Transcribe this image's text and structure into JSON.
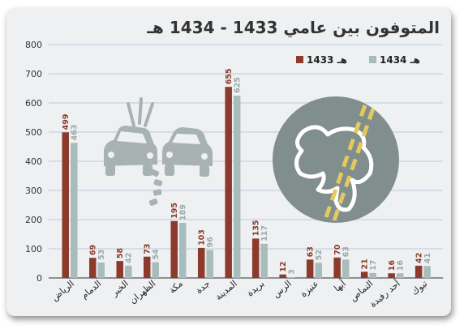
{
  "title": "المتوفون بين عامي 1433 - 1434 هـ",
  "colors": {
    "series_1433": "#8b3a2b",
    "series_1434": "#a9bcbc",
    "grid": "#b8cde0",
    "decor_gray": "#a8b2b2",
    "decor_circle": "#818e8e",
    "decor_yellow": "#e5c95e"
  },
  "decorations": {
    "left_icon": "car-crash-icon",
    "right_icon": "chalk-outline-body-icon"
  },
  "chart_data": {
    "type": "bar",
    "title": "المتوفون بين عامي 1433 - 1434 هـ",
    "xlabel": "",
    "ylabel": "",
    "ylim": [
      0,
      800
    ],
    "yticks": [
      0,
      100,
      200,
      300,
      400,
      500,
      600,
      700,
      800
    ],
    "grid": true,
    "legend_position": "top-right",
    "categories": [
      "الرياض",
      "الدمام",
      "الخبر",
      "الظهران",
      "مكة",
      "جدة",
      "المدينة",
      "بريدة",
      "الرس",
      "عنيزة",
      "أبها",
      "النماص",
      "أحد رفيدة",
      "تبوك"
    ],
    "series": [
      {
        "name": "1433 هـ",
        "color": "#8b3a2b",
        "values": [
          499,
          69,
          58,
          73,
          195,
          103,
          655,
          135,
          12,
          63,
          70,
          21,
          16,
          42
        ]
      },
      {
        "name": "1434 هـ",
        "color": "#a9bcbc",
        "values": [
          463,
          53,
          42,
          54,
          189,
          96,
          625,
          117,
          3,
          52,
          63,
          17,
          16,
          41
        ]
      }
    ]
  }
}
